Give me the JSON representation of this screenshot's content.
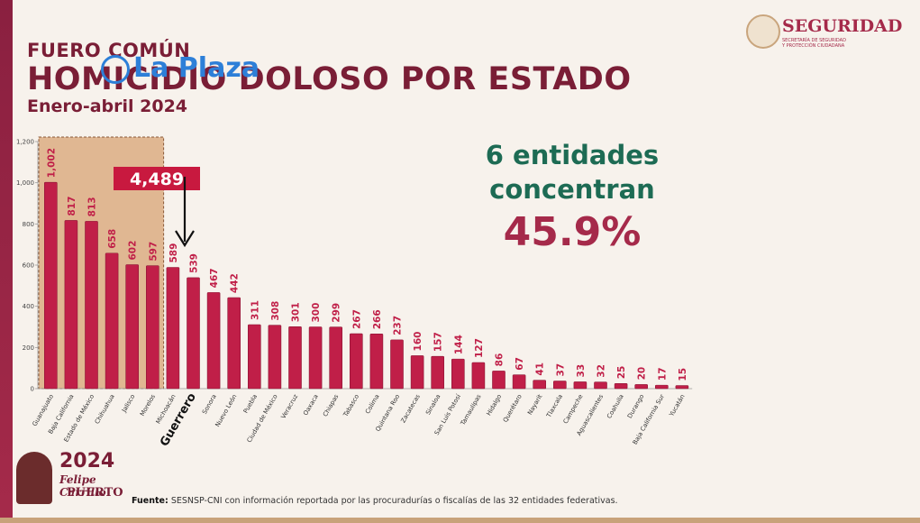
{
  "header": {
    "subtitle": "FUERO COMÚN",
    "title": "HOMICIDIO DOLOSO POR ESTADO",
    "period": "Enero-abril 2024"
  },
  "watermark": "La Plaza",
  "logo": {
    "name": "SEGURIDAD",
    "tag_line1": "SECRETARÍA DE SEGURIDAD",
    "tag_line2": "Y PROTECCIÓN CIUDADANA"
  },
  "callout": {
    "total": "4,489"
  },
  "conclusion": {
    "line1": "6 entidades",
    "line2": "concentran",
    "percent": "45.9%"
  },
  "source": {
    "label": "Fuente:",
    "text": "SESNSP-CNI con información reportada por las procuradurías o fiscalías de las 32 entidades federativas."
  },
  "badge": {
    "year": "2024",
    "name_line1": "Felipe Carrillo",
    "name_line2": "PUERTO"
  },
  "colors": {
    "bar": "#c01f48",
    "bar_dark": "#8c1634",
    "highlight_box": "#d9a77c",
    "callout_bg": "#c8193f",
    "accent_green": "#1d6b54"
  },
  "chart_data": {
    "type": "bar",
    "categories": [
      "Guanajuato",
      "Baja California",
      "Estado de México",
      "Chihuahua",
      "Jalisco",
      "Morelos",
      "Michoacán",
      "Guerrero",
      "Sonora",
      "Nuevo León",
      "Puebla",
      "Ciudad de México",
      "Veracruz",
      "Oaxaca",
      "Chiapas",
      "Tabasco",
      "Colima",
      "Quintana Roo",
      "Zacatecas",
      "Sinaloa",
      "San Luis Potosí",
      "Tamaulipas",
      "Hidalgo",
      "Querétaro",
      "Nayarit",
      "Tlaxcala",
      "Campeche",
      "Aguascalientes",
      "Coahuila",
      "Durango",
      "Baja California Sur",
      "Yucatán"
    ],
    "values": [
      1002,
      817,
      813,
      658,
      602,
      597,
      589,
      539,
      467,
      442,
      311,
      308,
      301,
      300,
      299,
      267,
      266,
      237,
      160,
      157,
      144,
      127,
      86,
      67,
      41,
      37,
      33,
      32,
      25,
      20,
      17,
      15
    ],
    "value_labels": [
      "1,002",
      "817",
      "813",
      "658",
      "602",
      "597",
      "589",
      "539",
      "467",
      "442",
      "311",
      "308",
      "301",
      "300",
      "299",
      "267",
      "266",
      "237",
      "160",
      "157",
      "144",
      "127",
      "86",
      "67",
      "41",
      "37",
      "33",
      "32",
      "25",
      "20",
      "17",
      "15"
    ],
    "yticks": [
      "0",
      "200",
      "400",
      "600",
      "800",
      "1,000",
      "1,200"
    ],
    "ylim": [
      0,
      1200
    ],
    "highlighted_count": 6,
    "emphasized_category": "Guerrero",
    "grid": false,
    "legend": "none"
  }
}
